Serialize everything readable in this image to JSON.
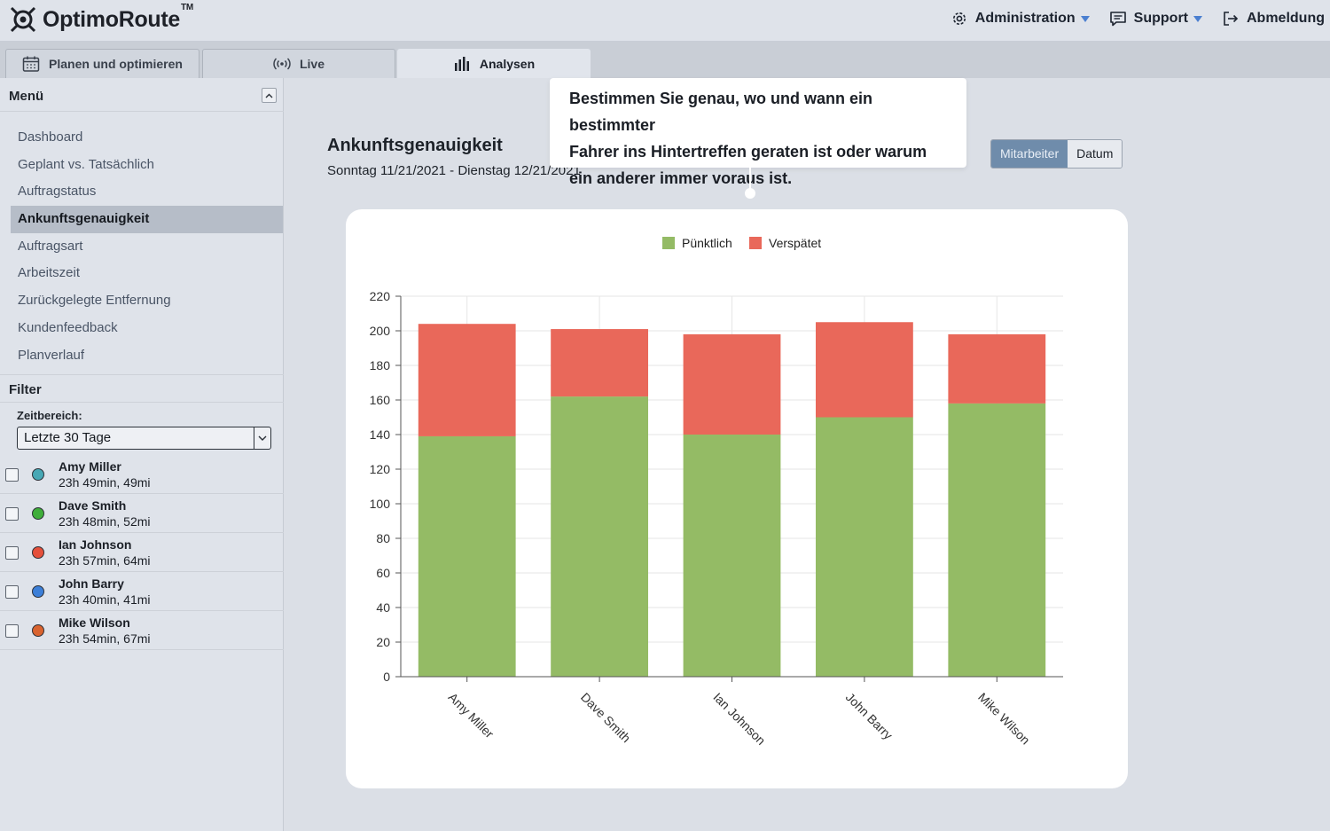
{
  "app": {
    "logo_text": "OptimoRoute",
    "logo_tm": "TM"
  },
  "topnav": {
    "administration": "Administration",
    "support": "Support",
    "logout": "Abmeldung"
  },
  "tabs": [
    {
      "label": "Planen und optimieren",
      "icon": "calendar-icon"
    },
    {
      "label": "Live",
      "icon": "broadcast-icon"
    },
    {
      "label": "Analysen",
      "icon": "bar-chart-icon",
      "active": true
    }
  ],
  "sidebar": {
    "menu_title": "Menü",
    "items": [
      {
        "label": "Dashboard"
      },
      {
        "label": "Geplant vs. Tatsächlich"
      },
      {
        "label": "Auftragstatus"
      },
      {
        "label": "Ankunftsgenauigkeit",
        "active": true
      },
      {
        "label": "Auftragsart"
      },
      {
        "label": "Arbeitszeit"
      },
      {
        "label": "Zurückgelegte Entfernung"
      },
      {
        "label": "Kundenfeedback"
      },
      {
        "label": "Planverlauf"
      }
    ],
    "filter_title": "Filter",
    "range_label": "Zeitbereich:",
    "range_value": "Letzte 30 Tage",
    "drivers": [
      {
        "name": "Amy Miller",
        "meta": "23h 49min, 49mi",
        "color": "#47a8b5"
      },
      {
        "name": "Dave Smith",
        "meta": "23h 48min, 52mi",
        "color": "#3fae3a"
      },
      {
        "name": "Ian Johnson",
        "meta": "23h 57min, 64mi",
        "color": "#e5503b"
      },
      {
        "name": "John Barry",
        "meta": "23h 40min, 41mi",
        "color": "#3c7fd8"
      },
      {
        "name": "Mike Wilson",
        "meta": "23h 54min, 67mi",
        "color": "#d9632f"
      }
    ]
  },
  "main": {
    "title": "Ankunftsgenauigkeit",
    "subtitle": "Sonntag 11/21/2021 - Dienstag 12/21/2021",
    "toggle": {
      "employee": "Mitarbeiter",
      "date": "Datum"
    },
    "tooltip": [
      "Bestimmen Sie genau, wo und wann ein bestimmter",
      "Fahrer ins Hintertreffen geraten ist oder warum",
      "ein anderer immer voraus ist."
    ]
  },
  "colors": {
    "on_time": "#94bb65",
    "late": "#e9685a"
  },
  "chart_data": {
    "type": "bar",
    "stacked": true,
    "categories": [
      "Amy Miller",
      "Dave Smith",
      "Ian Johnson",
      "John Barry",
      "Mike Wilson"
    ],
    "series": [
      {
        "name": "Pünktlich",
        "values": [
          139,
          162,
          140,
          150,
          158
        ]
      },
      {
        "name": "Verspätet",
        "values": [
          65,
          39,
          58,
          55,
          40
        ]
      }
    ],
    "ylim": [
      0,
      220
    ],
    "yticks": [
      0,
      20,
      40,
      60,
      80,
      100,
      120,
      140,
      160,
      180,
      200,
      220
    ],
    "legend": "top-center",
    "grid": true
  }
}
